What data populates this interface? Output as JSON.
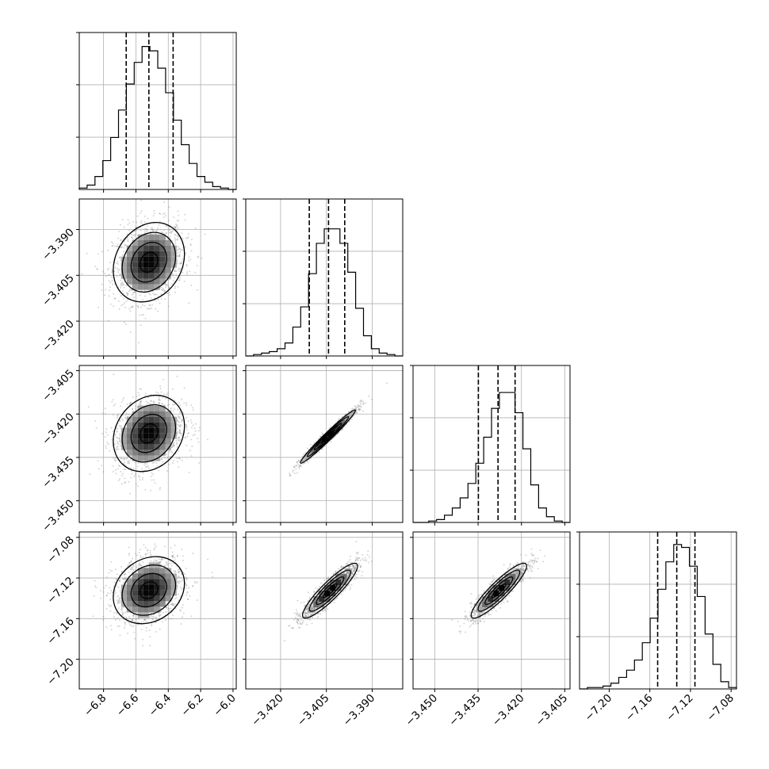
{
  "chart_data": {
    "type": "corner",
    "parameters": [
      {
        "range": [
          -6.95,
          -5.98
        ],
        "ticks": [
          -6.8,
          -6.6,
          -6.4,
          -6.2,
          -6.0
        ],
        "tick_labels": [
          "−6.8",
          "−6.6",
          "−6.4",
          "−6.2",
          "−6.0"
        ],
        "quantiles": [
          -6.66,
          -6.52,
          -6.37
        ]
      },
      {
        "range": [
          -3.4314,
          -3.38
        ],
        "ticks": [
          -3.42,
          -3.405,
          -3.39
        ],
        "tick_labels": [
          "−3.420",
          "−3.405",
          "−3.390"
        ],
        "quantiles": [
          -3.4106,
          -3.4043,
          -3.399
        ]
      },
      {
        "range": [
          -3.4575,
          -3.4032
        ],
        "ticks": [
          -3.45,
          -3.435,
          -3.42,
          -3.405
        ],
        "tick_labels": [
          "−3.450",
          "−3.435",
          "−3.420",
          "−3.405"
        ],
        "quantiles": [
          -3.4349,
          -3.4281,
          -3.4222
        ]
      },
      {
        "range": [
          -7.2292,
          -7.0747
        ],
        "ticks": [
          -7.2,
          -7.16,
          -7.12,
          -7.08
        ],
        "tick_labels": [
          "−7.20",
          "−7.16",
          "−7.12",
          "−7.08"
        ],
        "quantiles": [
          -7.1523,
          -7.1335,
          -7.1156
        ]
      }
    ],
    "histograms": [
      {
        "param": 0,
        "counts": [
          1,
          3,
          9,
          20,
          36,
          55,
          73,
          88,
          99,
          96,
          84,
          67,
          48,
          31,
          18,
          9,
          5,
          2,
          1,
          0
        ],
        "max": 100
      },
      {
        "param": 1,
        "counts": [
          0,
          1,
          2,
          3,
          5,
          9,
          20,
          34,
          57,
          78,
          88,
          88,
          78,
          58,
          33,
          14,
          5,
          2,
          1,
          0
        ],
        "max": 100
      },
      {
        "param": 2,
        "counts": [
          0,
          0,
          1,
          2,
          5,
          10,
          17,
          27,
          41,
          59,
          79,
          90,
          90,
          76,
          51,
          26,
          10,
          4,
          1,
          0
        ],
        "max": 100
      },
      {
        "param": 3,
        "counts": [
          0,
          1,
          1,
          2,
          4,
          8,
          13,
          20,
          32,
          49,
          69,
          88,
          100,
          98,
          85,
          64,
          38,
          17,
          5,
          1
        ],
        "max": 100
      }
    ],
    "scatter_panels": [
      {
        "row": 1,
        "col": 0,
        "mean": [
          -6.52,
          -3.4007
        ],
        "sd": [
          0.11,
          0.0065
        ],
        "rho": 0.2
      },
      {
        "row": 2,
        "col": 0,
        "mean": [
          -6.52,
          -3.4267
        ],
        "sd": [
          0.11,
          0.0066
        ],
        "rho": 0.2
      },
      {
        "row": 2,
        "col": 1,
        "mean": [
          -3.4045,
          -3.4278
        ],
        "sd": [
          0.0045,
          0.0046
        ],
        "rho": 0.98
      },
      {
        "row": 3,
        "col": 0,
        "mean": [
          -6.52,
          -7.132
        ],
        "sd": [
          0.11,
          0.0165
        ],
        "rho": 0.2
      },
      {
        "row": 3,
        "col": 1,
        "mean": [
          -3.4038,
          -7.1325
        ],
        "sd": [
          0.0045,
          0.0135
        ],
        "rho": 0.9
      },
      {
        "row": 3,
        "col": 2,
        "mean": [
          -3.4278,
          -7.1325
        ],
        "sd": [
          0.0048,
          0.0135
        ],
        "rho": 0.9
      }
    ],
    "grid": true,
    "colors": {
      "ink": "#000000",
      "grid": "#b0b0b0",
      "points": "#888888",
      "fill_dark": "#000000",
      "fill_light": "#ffffff"
    }
  }
}
